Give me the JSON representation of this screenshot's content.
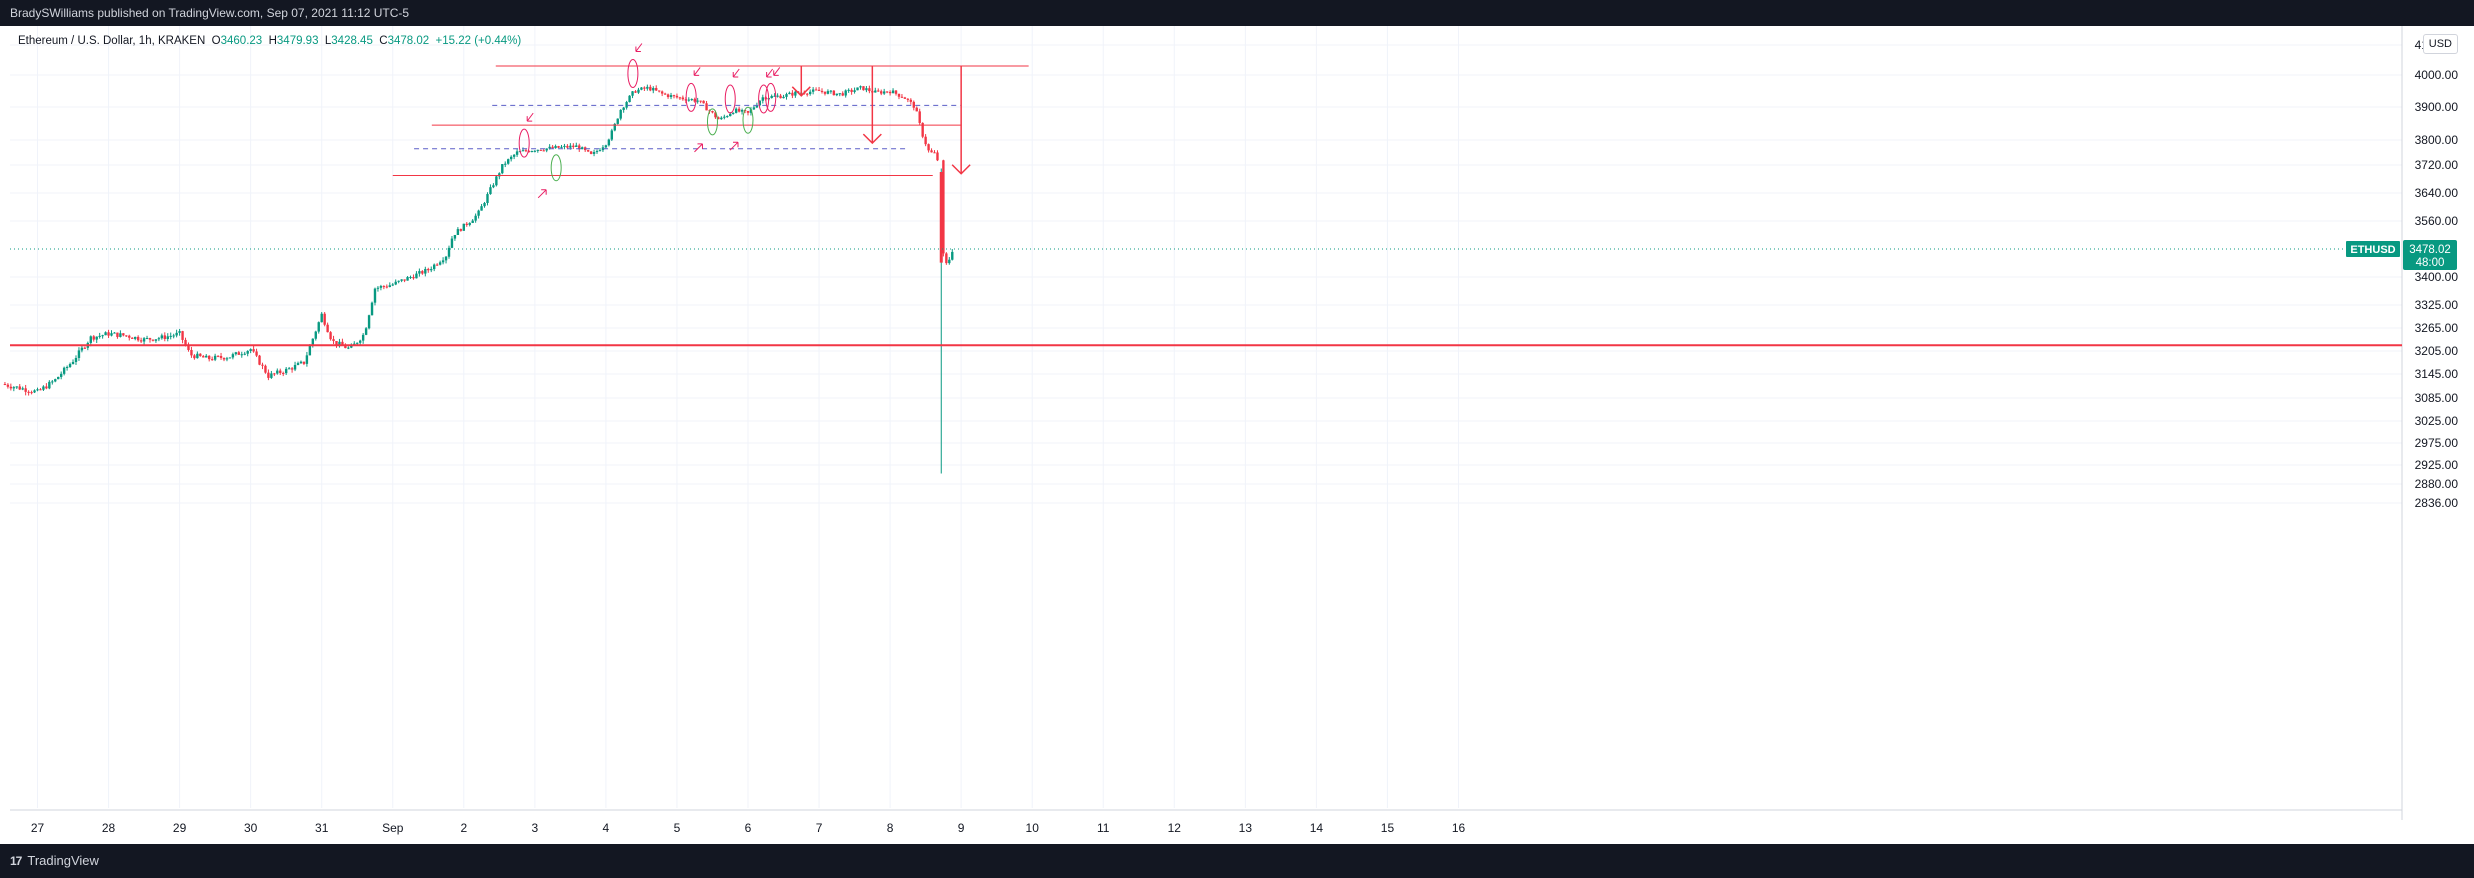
{
  "header": {
    "published_by": "BradySWilliams published on TradingView.com, Sep 07, 2021 11:12 UTC-5"
  },
  "legend": {
    "symbol_desc": "Ethereum / U.S. Dollar, 1h, KRAKEN",
    "o_label": "O",
    "o": "3460.23",
    "h_label": "H",
    "h": "3479.93",
    "l_label": "L",
    "l": "3428.45",
    "c_label": "C",
    "c": "3478.02",
    "change": "+15.22 (+0.44%)"
  },
  "currency": "USD",
  "footer": {
    "brand": "TradingView",
    "logo": "17"
  },
  "colors": {
    "up": "#089981",
    "down": "#f23645",
    "annotation": "#f23645",
    "dashed": "#5b5fc7",
    "pink": "#e91e63",
    "green_ellipse": "#4caf50",
    "grid": "#f0f3fa",
    "axis_text": "#131722"
  },
  "chart_data": {
    "type": "candlestick",
    "symbol": "ETHUSD",
    "interval": "1h",
    "exchange": "KRAKEN",
    "last_price": "3478.02",
    "countdown": "48:00",
    "y_ticks": [
      "4100.00",
      "4000.00",
      "3900.00",
      "3800.00",
      "3720.00",
      "3640.00",
      "3560.00",
      "3400.00",
      "3325.00",
      "3265.00",
      "3205.00",
      "3145.00",
      "3085.00",
      "3025.00",
      "2975.00",
      "2925.00",
      "2880.00",
      "2836.00"
    ],
    "x_ticks": [
      "27",
      "28",
      "29",
      "30",
      "31",
      "Sep",
      "2",
      "3",
      "4",
      "5",
      "6",
      "7",
      "8",
      "9",
      "10",
      "11",
      "12",
      "13",
      "14",
      "15",
      "16"
    ],
    "x_domain_days": [
      26.5,
      47.5
    ],
    "anchors": [
      [
        26.5,
        3120
      ],
      [
        26.75,
        3110
      ],
      [
        27.0,
        3100
      ],
      [
        27.25,
        3130
      ],
      [
        27.5,
        3180
      ],
      [
        27.75,
        3240
      ],
      [
        28.0,
        3250
      ],
      [
        28.25,
        3245
      ],
      [
        28.5,
        3235
      ],
      [
        28.75,
        3240
      ],
      [
        29.0,
        3250
      ],
      [
        29.15,
        3195
      ],
      [
        29.4,
        3185
      ],
      [
        29.7,
        3190
      ],
      [
        30.0,
        3210
      ],
      [
        30.25,
        3140
      ],
      [
        30.5,
        3155
      ],
      [
        30.75,
        3175
      ],
      [
        30.9,
        3250
      ],
      [
        31.0,
        3300
      ],
      [
        31.15,
        3230
      ],
      [
        31.4,
        3210
      ],
      [
        31.6,
        3250
      ],
      [
        31.75,
        3370
      ],
      [
        32.0,
        3380
      ],
      [
        32.25,
        3400
      ],
      [
        32.5,
        3420
      ],
      [
        32.75,
        3460
      ],
      [
        32.85,
        3520
      ],
      [
        33.0,
        3545
      ],
      [
        33.2,
        3580
      ],
      [
        33.4,
        3660
      ],
      [
        33.55,
        3720
      ],
      [
        33.75,
        3760
      ],
      [
        34.0,
        3770
      ],
      [
        34.3,
        3775
      ],
      [
        34.6,
        3780
      ],
      [
        34.8,
        3750
      ],
      [
        35.0,
        3790
      ],
      [
        35.1,
        3830
      ],
      [
        35.2,
        3890
      ],
      [
        35.4,
        3950
      ],
      [
        35.6,
        3960
      ],
      [
        35.8,
        3940
      ],
      [
        36.0,
        3930
      ],
      [
        36.3,
        3920
      ],
      [
        36.5,
        3880
      ],
      [
        36.6,
        3860
      ],
      [
        36.8,
        3890
      ],
      [
        37.0,
        3880
      ],
      [
        37.2,
        3930
      ],
      [
        37.5,
        3935
      ],
      [
        37.7,
        3945
      ],
      [
        38.0,
        3950
      ],
      [
        38.3,
        3940
      ],
      [
        38.6,
        3960
      ],
      [
        38.8,
        3945
      ],
      [
        39.0,
        3950
      ],
      [
        39.2,
        3930
      ],
      [
        39.35,
        3900
      ],
      [
        39.45,
        3820
      ],
      [
        39.55,
        3760
      ],
      [
        39.65,
        3755
      ],
      [
        39.7,
        3700
      ],
      [
        39.75,
        3460
      ],
      [
        39.8,
        3430
      ],
      [
        39.88,
        3478
      ]
    ],
    "special_candles": [
      {
        "day": 39.72,
        "open": 3700,
        "high": 3710,
        "low": 2905,
        "close": 3440
      }
    ],
    "annotations": {
      "horizontal_lines": [
        {
          "price": 4030,
          "x_start": 33.45,
          "x_end": 40.95,
          "style": "solid"
        },
        {
          "price": 3905,
          "x_start": 33.4,
          "x_end": 40.0,
          "style": "dashed"
        },
        {
          "price": 3845,
          "x_start": 32.55,
          "x_end": 40.0,
          "style": "solid"
        },
        {
          "price": 3772,
          "x_start": 32.3,
          "x_end": 39.25,
          "style": "dashed"
        },
        {
          "price": 3690,
          "x_start": 32.0,
          "x_end": 39.6,
          "style": "solid"
        },
        {
          "price": 3220,
          "x_start": 26.5,
          "x_end": 47.5,
          "style": "solid",
          "thick": true
        }
      ],
      "target_arrows": [
        {
          "x": 37.75,
          "from": 4030,
          "to": 3935
        },
        {
          "x": 38.75,
          "from": 4030,
          "to": 3790
        },
        {
          "x": 40.0,
          "from": 4030,
          "to": 3695
        }
      ],
      "pink_ellipses": [
        [
          33.85,
          3790
        ],
        [
          35.38,
          4005
        ],
        [
          36.2,
          3930
        ],
        [
          36.75,
          3925
        ],
        [
          37.22,
          3925
        ],
        [
          37.32,
          3930
        ]
      ],
      "green_ellipses": [
        [
          34.3,
          3712
        ],
        [
          36.5,
          3855
        ],
        [
          37.0,
          3860
        ]
      ]
    }
  }
}
